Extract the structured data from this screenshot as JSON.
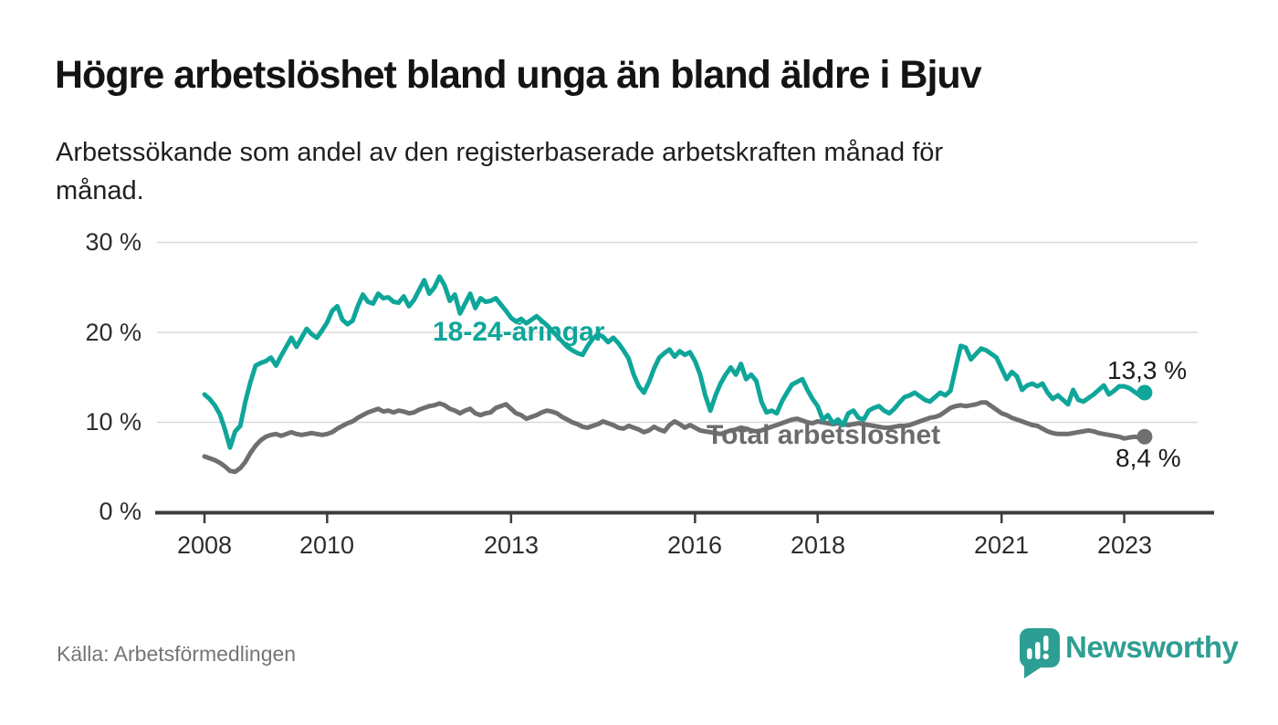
{
  "header": {
    "title": "Högre arbetslöshet bland unga än bland äldre i Bjuv",
    "subtitle_line1": "Arbetssökande som andel av den registerbaserade arbetskraften månad för",
    "subtitle_line2": "månad."
  },
  "footer": {
    "source": "Källa: Arbetsförmedlingen",
    "brand": "Newsworthy",
    "brand_color": "#2d9e93"
  },
  "chart_data": {
    "type": "line",
    "title": "Högre arbetslöshet bland unga än bland äldre i Bjuv",
    "xlabel": "",
    "ylabel": "Arbetssökande som andel av den registerbaserade arbetskraften",
    "unit": "%",
    "x_frequency": "monthly",
    "x_start": "2008-01",
    "x_end": "2023-05",
    "ylim": [
      0,
      30
    ],
    "grid": "horizontal",
    "legend_position": "inline-labels",
    "xticks": [
      2008,
      2010,
      2013,
      2016,
      2018,
      2021,
      2023
    ],
    "xtick_labels": [
      "2008",
      "2010",
      "2013",
      "2016",
      "2018",
      "2021",
      "2023"
    ],
    "yticks": [
      0,
      10,
      20,
      30
    ],
    "ytick_labels": [
      "0 %",
      "10 %",
      "20 %",
      "30 %"
    ],
    "series": [
      {
        "id": "youth",
        "name": "18-24-åringar",
        "color": "#0fa69a",
        "end_label": "13,3 %",
        "end_value": 13.3,
        "values": [
          13.1,
          12.6,
          11.9,
          10.9,
          9.2,
          7.2,
          9.0,
          9.6,
          12.3,
          14.5,
          16.3,
          16.6,
          16.8,
          17.2,
          16.3,
          17.4,
          18.4,
          19.4,
          18.4,
          19.4,
          20.4,
          19.8,
          19.4,
          20.2,
          21.1,
          22.4,
          22.9,
          21.4,
          20.9,
          21.3,
          22.9,
          24.2,
          23.4,
          23.2,
          24.3,
          23.8,
          23.9,
          23.4,
          23.3,
          24.0,
          22.9,
          23.6,
          24.7,
          25.8,
          24.3,
          25.0,
          26.2,
          25.2,
          23.5,
          24.2,
          22.1,
          23.2,
          24.3,
          22.7,
          23.8,
          23.4,
          23.5,
          23.8,
          23.1,
          22.4,
          21.6,
          21.2,
          21.5,
          21.0,
          21.4,
          21.8,
          21.3,
          20.8,
          20.2,
          19.6,
          19.0,
          18.4,
          18.0,
          17.7,
          17.5,
          18.5,
          19.3,
          19.8,
          19.5,
          18.9,
          19.4,
          18.8,
          18.0,
          17.1,
          15.3,
          14.0,
          13.3,
          14.5,
          16.0,
          17.2,
          17.7,
          18.1,
          17.3,
          17.9,
          17.5,
          17.8,
          16.8,
          15.3,
          13.0,
          11.3,
          13.0,
          14.3,
          15.3,
          16.1,
          15.3,
          16.5,
          14.8,
          15.3,
          14.6,
          12.3,
          11.1,
          11.3,
          11.0,
          12.3,
          13.3,
          14.2,
          14.5,
          14.8,
          13.6,
          12.6,
          11.8,
          10.3,
          10.8,
          9.9,
          10.3,
          9.7,
          11.0,
          11.3,
          10.5,
          10.3,
          11.3,
          11.6,
          11.8,
          11.3,
          11.0,
          11.5,
          12.2,
          12.8,
          13.0,
          13.3,
          12.9,
          12.5,
          12.3,
          12.8,
          13.3,
          13.0,
          13.5,
          16.0,
          18.5,
          18.3,
          17.0,
          17.6,
          18.2,
          18.0,
          17.6,
          17.2,
          16.0,
          14.8,
          15.6,
          15.1,
          13.6,
          14.1,
          14.3,
          14.0,
          14.3,
          13.3,
          12.6,
          13.0,
          12.5,
          12.0,
          13.6,
          12.5,
          12.3,
          12.7,
          13.1,
          13.6,
          14.1,
          13.1,
          13.5,
          14.0,
          14.0,
          13.8,
          13.4,
          13.0,
          13.3
        ]
      },
      {
        "id": "total",
        "name": "Total arbetslöshet",
        "color": "#6f6f6f",
        "end_label": "8,4 %",
        "end_value": 8.4,
        "values": [
          6.2,
          6.0,
          5.8,
          5.5,
          5.1,
          4.6,
          4.5,
          4.9,
          5.6,
          6.6,
          7.4,
          8.0,
          8.4,
          8.6,
          8.7,
          8.5,
          8.7,
          8.9,
          8.7,
          8.6,
          8.7,
          8.8,
          8.7,
          8.6,
          8.7,
          8.9,
          9.3,
          9.6,
          9.9,
          10.1,
          10.5,
          10.8,
          11.1,
          11.3,
          11.5,
          11.2,
          11.3,
          11.1,
          11.3,
          11.2,
          11.0,
          11.1,
          11.4,
          11.6,
          11.8,
          11.9,
          12.1,
          11.9,
          11.5,
          11.3,
          11.0,
          11.3,
          11.5,
          11.0,
          10.8,
          11.0,
          11.1,
          11.6,
          11.8,
          12.0,
          11.5,
          11.0,
          10.8,
          10.4,
          10.6,
          10.8,
          11.1,
          11.3,
          11.2,
          11.0,
          10.6,
          10.3,
          10.0,
          9.8,
          9.5,
          9.4,
          9.6,
          9.8,
          10.1,
          9.9,
          9.7,
          9.4,
          9.3,
          9.6,
          9.4,
          9.2,
          8.9,
          9.1,
          9.5,
          9.2,
          9.0,
          9.7,
          10.1,
          9.8,
          9.4,
          9.7,
          9.4,
          9.1,
          9.0,
          8.9,
          8.8,
          8.7,
          8.9,
          9.1,
          9.2,
          9.4,
          9.3,
          9.1,
          9.0,
          9.1,
          9.3,
          9.5,
          9.7,
          9.9,
          10.1,
          10.3,
          10.4,
          10.2,
          10.0,
          9.9,
          10.1,
          10.0,
          9.9,
          9.8,
          9.9,
          9.8,
          9.7,
          9.8,
          9.9,
          9.8,
          9.7,
          9.6,
          9.5,
          9.4,
          9.4,
          9.5,
          9.6,
          9.6,
          9.7,
          9.9,
          10.1,
          10.3,
          10.5,
          10.6,
          10.8,
          11.2,
          11.6,
          11.8,
          11.9,
          11.8,
          11.9,
          12.0,
          12.2,
          12.2,
          11.8,
          11.4,
          11.0,
          10.8,
          10.5,
          10.3,
          10.1,
          9.9,
          9.7,
          9.6,
          9.3,
          9.0,
          8.8,
          8.7,
          8.7,
          8.7,
          8.8,
          8.9,
          9.0,
          9.1,
          9.0,
          8.8,
          8.7,
          8.6,
          8.5,
          8.4,
          8.2,
          8.3,
          8.4,
          8.3,
          8.4
        ]
      }
    ],
    "style": {
      "grid_color": "#d9d9d9",
      "axis_color": "#3c3c3c",
      "tick_label_color": "#2d2d2d"
    }
  }
}
